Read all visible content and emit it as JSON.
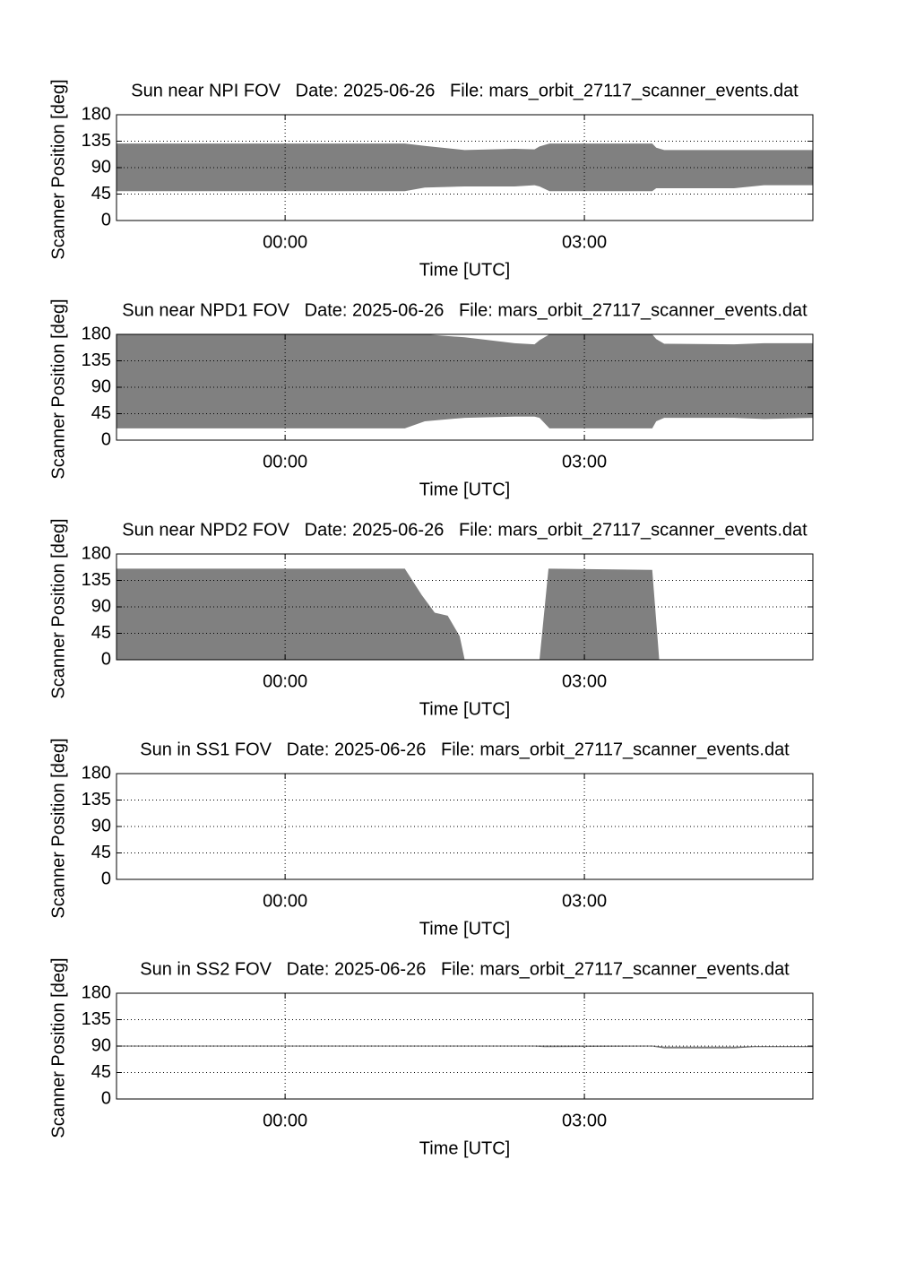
{
  "chart_data": [
    {
      "type": "band",
      "title": "Sun near NPI FOV   Date: 2025-06-26   File: mars_orbit_27117_scanner_events.dat",
      "x_label": "Time [UTC]",
      "y_label": "Scanner Position [deg]",
      "color": "#808080",
      "grid": true,
      "xlim": [
        -1.69,
        5.29
      ],
      "xticks": [
        {
          "value": 0,
          "label": "00:00"
        },
        {
          "value": 3,
          "label": "03:00"
        }
      ],
      "ylim": [
        0,
        180
      ],
      "yticks": [
        0,
        45,
        90,
        135,
        180
      ],
      "x": [
        -1.69,
        1.2,
        1.4,
        1.8,
        2.3,
        2.5,
        2.55,
        2.65,
        3.68,
        3.72,
        3.8,
        4.5,
        4.8,
        5.29
      ],
      "y_low": [
        50,
        50,
        56,
        58,
        58,
        60,
        58,
        50,
        50,
        55,
        55,
        55,
        60,
        60
      ],
      "y_high": [
        131,
        131,
        127,
        120,
        122,
        121,
        126,
        131,
        131,
        124,
        120,
        120,
        120,
        120
      ]
    },
    {
      "type": "band",
      "title": "Sun near NPD1 FOV   Date: 2025-06-26   File: mars_orbit_27117_scanner_events.dat",
      "x_label": "Time [UTC]",
      "y_label": "Scanner Position [deg]",
      "color": "#808080",
      "grid": true,
      "xlim": [
        -1.69,
        5.29
      ],
      "xticks": [
        {
          "value": 0,
          "label": "00:00"
        },
        {
          "value": 3,
          "label": "03:00"
        }
      ],
      "ylim": [
        0,
        180
      ],
      "yticks": [
        0,
        45,
        90,
        135,
        180
      ],
      "x": [
        -1.69,
        1.2,
        1.4,
        1.8,
        2.3,
        2.5,
        2.55,
        2.65,
        3.68,
        3.72,
        3.8,
        4.5,
        4.8,
        5.29
      ],
      "y_low": [
        20,
        20,
        32,
        38,
        40,
        40,
        38,
        20,
        20,
        32,
        38,
        38,
        36,
        38
      ],
      "y_high": [
        180,
        180,
        180,
        175,
        165,
        163,
        170,
        180,
        180,
        172,
        164,
        163,
        165,
        165
      ]
    },
    {
      "type": "band",
      "title": "Sun near NPD2 FOV   Date: 2025-06-26   File: mars_orbit_27117_scanner_events.dat",
      "x_label": "Time [UTC]",
      "y_label": "Scanner Position [deg]",
      "color": "#808080",
      "grid": true,
      "xlim": [
        -1.69,
        5.29
      ],
      "xticks": [
        {
          "value": 0,
          "label": "00:00"
        },
        {
          "value": 3,
          "label": "03:00"
        }
      ],
      "ylim": [
        0,
        180
      ],
      "yticks": [
        0,
        45,
        90,
        135,
        180
      ],
      "x": [
        -1.69,
        1.2,
        1.37,
        1.5,
        1.63,
        1.75,
        1.8,
        2.55,
        2.64,
        3.68,
        3.75,
        5.29
      ],
      "y_low": [
        0,
        0,
        0,
        0,
        0,
        0,
        0,
        0,
        0,
        0,
        0,
        0
      ],
      "y_high": [
        155,
        155,
        110,
        80,
        75,
        40,
        0,
        0,
        155,
        153,
        0,
        0
      ]
    },
    {
      "type": "band",
      "title": "Sun in SS1 FOV   Date: 2025-06-26   File: mars_orbit_27117_scanner_events.dat",
      "x_label": "Time [UTC]",
      "y_label": "Scanner Position [deg]",
      "color": "#808080",
      "grid": true,
      "xlim": [
        -1.69,
        5.29
      ],
      "xticks": [
        {
          "value": 0,
          "label": "00:00"
        },
        {
          "value": 3,
          "label": "03:00"
        }
      ],
      "ylim": [
        0,
        180
      ],
      "yticks": [
        0,
        45,
        90,
        135,
        180
      ],
      "x": [],
      "y_low": [],
      "y_high": []
    },
    {
      "type": "band",
      "title": "Sun in SS2 FOV   Date: 2025-06-26   File: mars_orbit_27117_scanner_events.dat",
      "x_label": "Time [UTC]",
      "y_label": "Scanner Position [deg]",
      "color": "#808080",
      "grid": true,
      "xlim": [
        -1.69,
        5.29
      ],
      "xticks": [
        {
          "value": 0,
          "label": "00:00"
        },
        {
          "value": 3,
          "label": "03:00"
        }
      ],
      "ylim": [
        0,
        180
      ],
      "yticks": [
        0,
        45,
        90,
        135,
        180
      ],
      "x": [
        -1.69,
        2.5,
        2.6,
        3.68,
        3.8,
        4.5,
        4.7,
        5.29
      ],
      "y_low": [
        89,
        89,
        88,
        89,
        86,
        86,
        88,
        88
      ],
      "y_high": [
        91,
        91,
        91,
        91,
        89,
        89,
        90,
        90
      ]
    }
  ]
}
